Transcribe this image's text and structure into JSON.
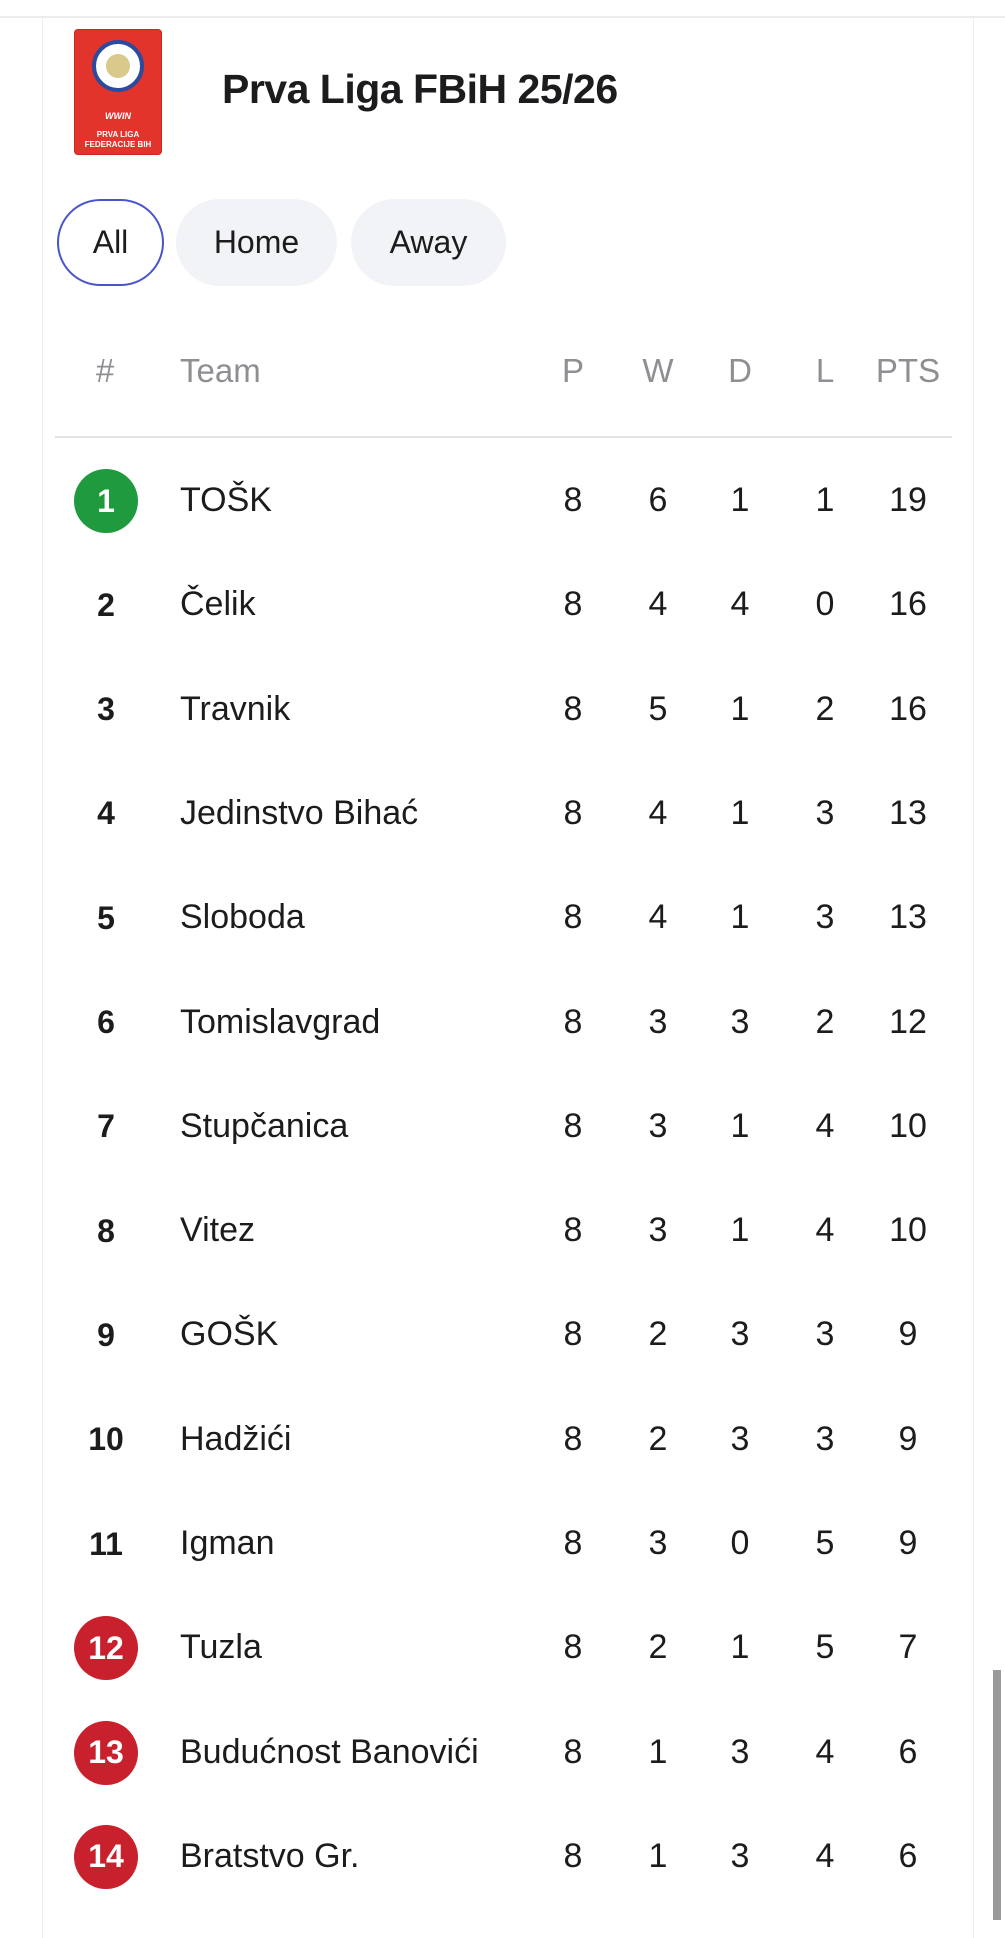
{
  "league": {
    "title": "Prva Liga FBiH 25/26",
    "logo_text": [
      "WWIN",
      "PRVA LIGA",
      "FEDERACIJE BIH"
    ]
  },
  "tabs": [
    {
      "label": "All",
      "active": true
    },
    {
      "label": "Home",
      "active": false
    },
    {
      "label": "Away",
      "active": false
    }
  ],
  "table": {
    "headers": {
      "pos": "#",
      "team": "Team",
      "p": "P",
      "w": "W",
      "d": "D",
      "l": "L",
      "pts": "PTS"
    },
    "rows": [
      {
        "pos": "1",
        "team": "TOŠK",
        "p": "8",
        "w": "6",
        "d": "1",
        "l": "1",
        "pts": "19",
        "zone": "promotion"
      },
      {
        "pos": "2",
        "team": "Čelik",
        "p": "8",
        "w": "4",
        "d": "4",
        "l": "0",
        "pts": "16",
        "zone": ""
      },
      {
        "pos": "3",
        "team": "Travnik",
        "p": "8",
        "w": "5",
        "d": "1",
        "l": "2",
        "pts": "16",
        "zone": ""
      },
      {
        "pos": "4",
        "team": "Jedinstvo Bihać",
        "p": "8",
        "w": "4",
        "d": "1",
        "l": "3",
        "pts": "13",
        "zone": ""
      },
      {
        "pos": "5",
        "team": "Sloboda",
        "p": "8",
        "w": "4",
        "d": "1",
        "l": "3",
        "pts": "13",
        "zone": ""
      },
      {
        "pos": "6",
        "team": "Tomislavgrad",
        "p": "8",
        "w": "3",
        "d": "3",
        "l": "2",
        "pts": "12",
        "zone": ""
      },
      {
        "pos": "7",
        "team": "Stupčanica",
        "p": "8",
        "w": "3",
        "d": "1",
        "l": "4",
        "pts": "10",
        "zone": ""
      },
      {
        "pos": "8",
        "team": "Vitez",
        "p": "8",
        "w": "3",
        "d": "1",
        "l": "4",
        "pts": "10",
        "zone": ""
      },
      {
        "pos": "9",
        "team": "GOŠK",
        "p": "8",
        "w": "2",
        "d": "3",
        "l": "3",
        "pts": "9",
        "zone": ""
      },
      {
        "pos": "10",
        "team": "Hadžići",
        "p": "8",
        "w": "2",
        "d": "3",
        "l": "3",
        "pts": "9",
        "zone": ""
      },
      {
        "pos": "11",
        "team": "Igman",
        "p": "8",
        "w": "3",
        "d": "0",
        "l": "5",
        "pts": "9",
        "zone": ""
      },
      {
        "pos": "12",
        "team": "Tuzla",
        "p": "8",
        "w": "2",
        "d": "1",
        "l": "5",
        "pts": "7",
        "zone": "relegation"
      },
      {
        "pos": "13",
        "team": "Budućnost Banovići",
        "p": "8",
        "w": "1",
        "d": "3",
        "l": "4",
        "pts": "6",
        "zone": "relegation"
      },
      {
        "pos": "14",
        "team": "Bratstvo Gr.",
        "p": "8",
        "w": "1",
        "d": "3",
        "l": "4",
        "pts": "6",
        "zone": "relegation"
      }
    ]
  },
  "colors": {
    "promotion": "#1f9a3e",
    "relegation": "#c8202c",
    "active_tab_border": "#4a55c9"
  }
}
